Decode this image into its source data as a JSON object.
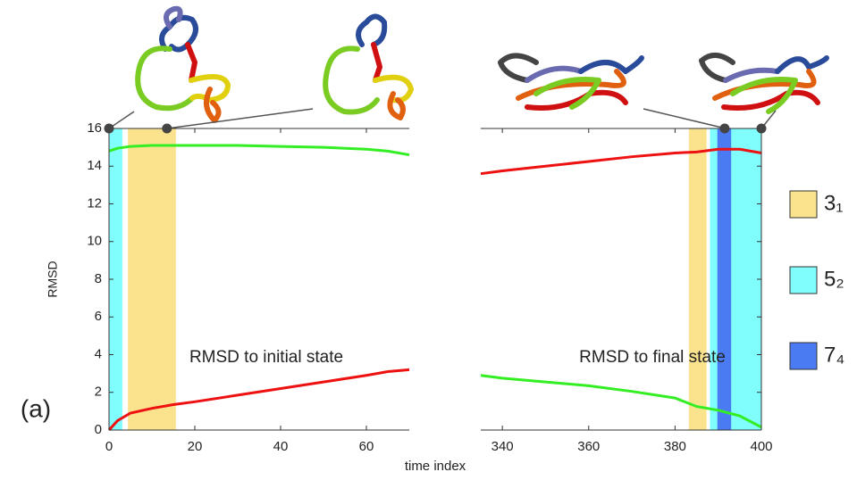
{
  "chart_data": {
    "type": "line",
    "panel_label": "(a)",
    "ylabel": "RMSD",
    "xlabel": "time index",
    "ylim": [
      0,
      16
    ],
    "yticks": [
      0,
      2,
      4,
      6,
      8,
      10,
      12,
      14,
      16
    ],
    "legend": [
      {
        "name": "3₁",
        "color": "#fbe38e"
      },
      {
        "name": "5₂",
        "color": "#80fefe"
      },
      {
        "name": "7₄",
        "color": "#4a7bf2"
      }
    ],
    "panels": [
      {
        "xlim": [
          0,
          70
        ],
        "xticks": [
          0,
          20,
          40,
          60
        ],
        "annotation": "RMSD to initial state",
        "bands": [
          {
            "start": 0,
            "end": 3.1,
            "color": "#80fefe"
          },
          {
            "start": 4.4,
            "end": 15.6,
            "color": "#fbe38e"
          }
        ],
        "snapshots": [
          0,
          13.5
        ],
        "series": [
          {
            "color": "#33ee22",
            "x": [
              0,
              2,
              5,
              10,
              15,
              20,
              30,
              40,
              50,
              60,
              65,
              70
            ],
            "values": [
              14.8,
              14.95,
              15.05,
              15.1,
              15.1,
              15.1,
              15.1,
              15.05,
              15.0,
              14.9,
              14.8,
              14.6
            ]
          },
          {
            "color": "#ee1111",
            "x": [
              0,
              2,
              5,
              10,
              15,
              20,
              30,
              40,
              50,
              60,
              65,
              70
            ],
            "values": [
              0,
              0.5,
              0.9,
              1.15,
              1.35,
              1.5,
              1.85,
              2.2,
              2.55,
              2.9,
              3.1,
              3.2
            ]
          }
        ]
      },
      {
        "xlim": [
          335,
          400
        ],
        "xticks": [
          340,
          360,
          380,
          400
        ],
        "annotation": "RMSD to final state",
        "bands": [
          {
            "start": 383.2,
            "end": 387.3,
            "color": "#fbe38e"
          },
          {
            "start": 388.1,
            "end": 400,
            "color": "#80fefe"
          },
          {
            "start": 389.8,
            "end": 393,
            "color": "#4a7bf2"
          }
        ],
        "snapshots": [
          391.5,
          400
        ],
        "series": [
          {
            "color": "#ee1111",
            "x": [
              335,
              340,
              350,
              360,
              370,
              380,
              385,
              390,
              395,
              400
            ],
            "values": [
              13.6,
              13.75,
              14.0,
              14.25,
              14.5,
              14.7,
              14.75,
              14.9,
              14.9,
              14.7
            ]
          },
          {
            "color": "#33ee22",
            "x": [
              335,
              340,
              350,
              360,
              370,
              380,
              385,
              390,
              395,
              400
            ],
            "values": [
              2.9,
              2.75,
              2.55,
              2.35,
              2.05,
              1.7,
              1.25,
              1.05,
              0.75,
              0.15
            ]
          }
        ]
      }
    ]
  }
}
